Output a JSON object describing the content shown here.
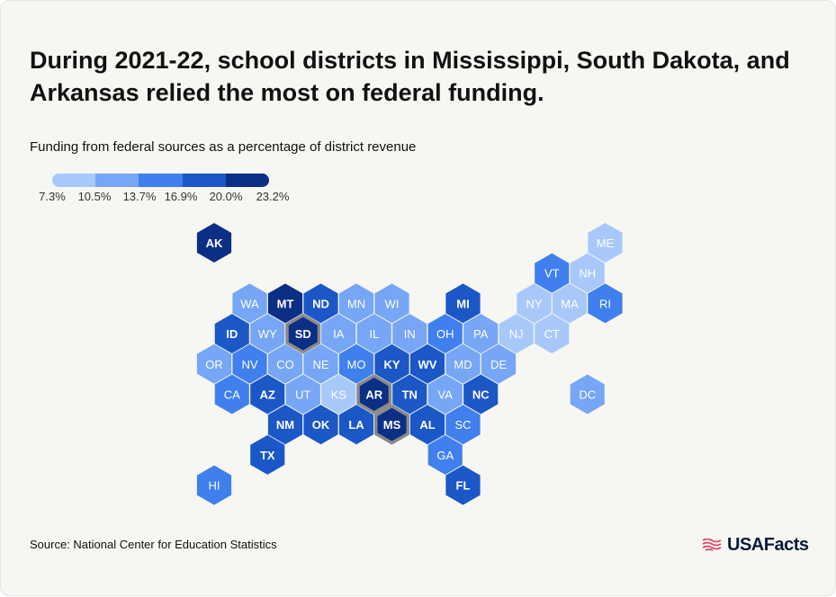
{
  "title": "During 2021-22, school districts in Mississippi, South Dakota, and Arkansas relied the most on federal funding.",
  "subtitle": "Funding from federal sources as a percentage of district revenue",
  "legend": {
    "labels": [
      "7.3%",
      "10.5%",
      "13.7%",
      "16.9%",
      "20.0%",
      "23.2%"
    ],
    "colors": [
      "#a8c8fa",
      "#76a6f5",
      "#3f80ee",
      "#1b57c6",
      "#0c2f86"
    ]
  },
  "highlight_color": "#8a8a8a",
  "states": [
    {
      "abbr": "AK",
      "row": 0,
      "col": 0,
      "tier": 4
    },
    {
      "abbr": "ME",
      "row": 0,
      "col": 11,
      "tier": 0
    },
    {
      "abbr": "VT",
      "row": 1,
      "col": 10,
      "tier": 2
    },
    {
      "abbr": "NH",
      "row": 1,
      "col": 11,
      "tier": 0
    },
    {
      "abbr": "WA",
      "row": 2,
      "col": 1,
      "tier": 1
    },
    {
      "abbr": "MT",
      "row": 2,
      "col": 2,
      "tier": 4
    },
    {
      "abbr": "ND",
      "row": 2,
      "col": 3,
      "tier": 3
    },
    {
      "abbr": "MN",
      "row": 2,
      "col": 4,
      "tier": 1
    },
    {
      "abbr": "WI",
      "row": 2,
      "col": 5,
      "tier": 1
    },
    {
      "abbr": "MI",
      "row": 2,
      "col": 7,
      "tier": 3
    },
    {
      "abbr": "NY",
      "row": 2,
      "col": 9,
      "tier": 0
    },
    {
      "abbr": "MA",
      "row": 2,
      "col": 10,
      "tier": 0
    },
    {
      "abbr": "RI",
      "row": 2,
      "col": 11,
      "tier": 2
    },
    {
      "abbr": "ID",
      "row": 3,
      "col": 1,
      "tier": 3
    },
    {
      "abbr": "WY",
      "row": 3,
      "col": 2,
      "tier": 1
    },
    {
      "abbr": "SD",
      "row": 3,
      "col": 3,
      "tier": 4,
      "highlight": true
    },
    {
      "abbr": "IA",
      "row": 3,
      "col": 4,
      "tier": 1
    },
    {
      "abbr": "IL",
      "row": 3,
      "col": 5,
      "tier": 1
    },
    {
      "abbr": "IN",
      "row": 3,
      "col": 6,
      "tier": 1
    },
    {
      "abbr": "OH",
      "row": 3,
      "col": 7,
      "tier": 2
    },
    {
      "abbr": "PA",
      "row": 3,
      "col": 8,
      "tier": 1
    },
    {
      "abbr": "NJ",
      "row": 3,
      "col": 9,
      "tier": 0
    },
    {
      "abbr": "CT",
      "row": 3,
      "col": 10,
      "tier": 0
    },
    {
      "abbr": "OR",
      "row": 4,
      "col": 0,
      "tier": 1
    },
    {
      "abbr": "NV",
      "row": 4,
      "col": 1,
      "tier": 2
    },
    {
      "abbr": "CO",
      "row": 4,
      "col": 2,
      "tier": 1
    },
    {
      "abbr": "NE",
      "row": 4,
      "col": 3,
      "tier": 1
    },
    {
      "abbr": "MO",
      "row": 4,
      "col": 4,
      "tier": 2
    },
    {
      "abbr": "KY",
      "row": 4,
      "col": 5,
      "tier": 3
    },
    {
      "abbr": "WV",
      "row": 4,
      "col": 6,
      "tier": 3
    },
    {
      "abbr": "MD",
      "row": 4,
      "col": 7,
      "tier": 1
    },
    {
      "abbr": "DE",
      "row": 4,
      "col": 8,
      "tier": 1
    },
    {
      "abbr": "CA",
      "row": 5,
      "col": 1,
      "tier": 2
    },
    {
      "abbr": "AZ",
      "row": 5,
      "col": 2,
      "tier": 3
    },
    {
      "abbr": "UT",
      "row": 5,
      "col": 3,
      "tier": 1
    },
    {
      "abbr": "KS",
      "row": 5,
      "col": 4,
      "tier": 0
    },
    {
      "abbr": "AR",
      "row": 5,
      "col": 5,
      "tier": 4,
      "highlight": true
    },
    {
      "abbr": "TN",
      "row": 5,
      "col": 6,
      "tier": 3
    },
    {
      "abbr": "VA",
      "row": 5,
      "col": 7,
      "tier": 1
    },
    {
      "abbr": "NC",
      "row": 5,
      "col": 8,
      "tier": 3
    },
    {
      "abbr": "DC",
      "row": 5,
      "col": 11,
      "tier": 1
    },
    {
      "abbr": "NM",
      "row": 6,
      "col": 2,
      "tier": 3
    },
    {
      "abbr": "OK",
      "row": 6,
      "col": 3,
      "tier": 3
    },
    {
      "abbr": "LA",
      "row": 6,
      "col": 4,
      "tier": 3
    },
    {
      "abbr": "MS",
      "row": 6,
      "col": 5,
      "tier": 4,
      "highlight": true
    },
    {
      "abbr": "AL",
      "row": 6,
      "col": 6,
      "tier": 3
    },
    {
      "abbr": "SC",
      "row": 6,
      "col": 7,
      "tier": 2
    },
    {
      "abbr": "TX",
      "row": 7,
      "col": 2,
      "tier": 3
    },
    {
      "abbr": "GA",
      "row": 7,
      "col": 7,
      "tier": 2
    },
    {
      "abbr": "HI",
      "row": 8,
      "col": 0,
      "tier": 2
    },
    {
      "abbr": "FL",
      "row": 8,
      "col": 7,
      "tier": 3
    }
  ],
  "source": "Source: National Center for Education Statistics",
  "brand": "USAFacts"
}
